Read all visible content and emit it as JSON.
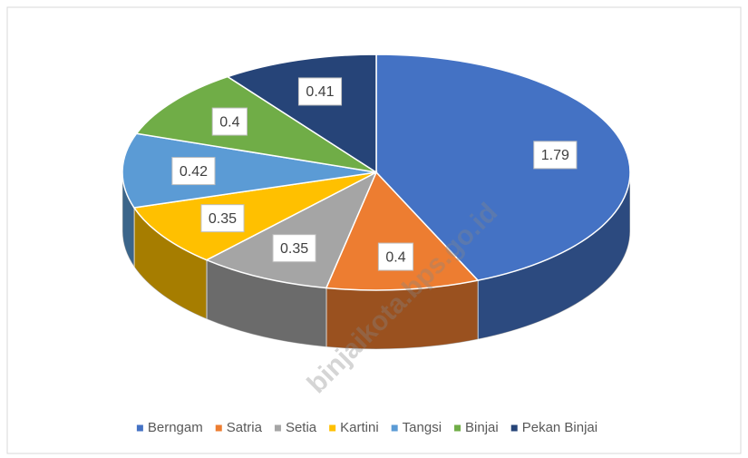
{
  "chart_data": {
    "type": "pie",
    "categories": [
      "Berngam",
      "Satria",
      "Setia",
      "Kartini",
      "Tangsi",
      "Binjai",
      "Pekan Binjai"
    ],
    "values": [
      1.79,
      0.4,
      0.35,
      0.35,
      0.42,
      0.4,
      0.41
    ],
    "colors": [
      "#4472c4",
      "#ed7d31",
      "#a5a5a5",
      "#ffc000",
      "#5b9bd5",
      "#70ad47",
      "#264478"
    ],
    "legend": "bottom",
    "watermark": "binjaikota.bps.go.id"
  }
}
